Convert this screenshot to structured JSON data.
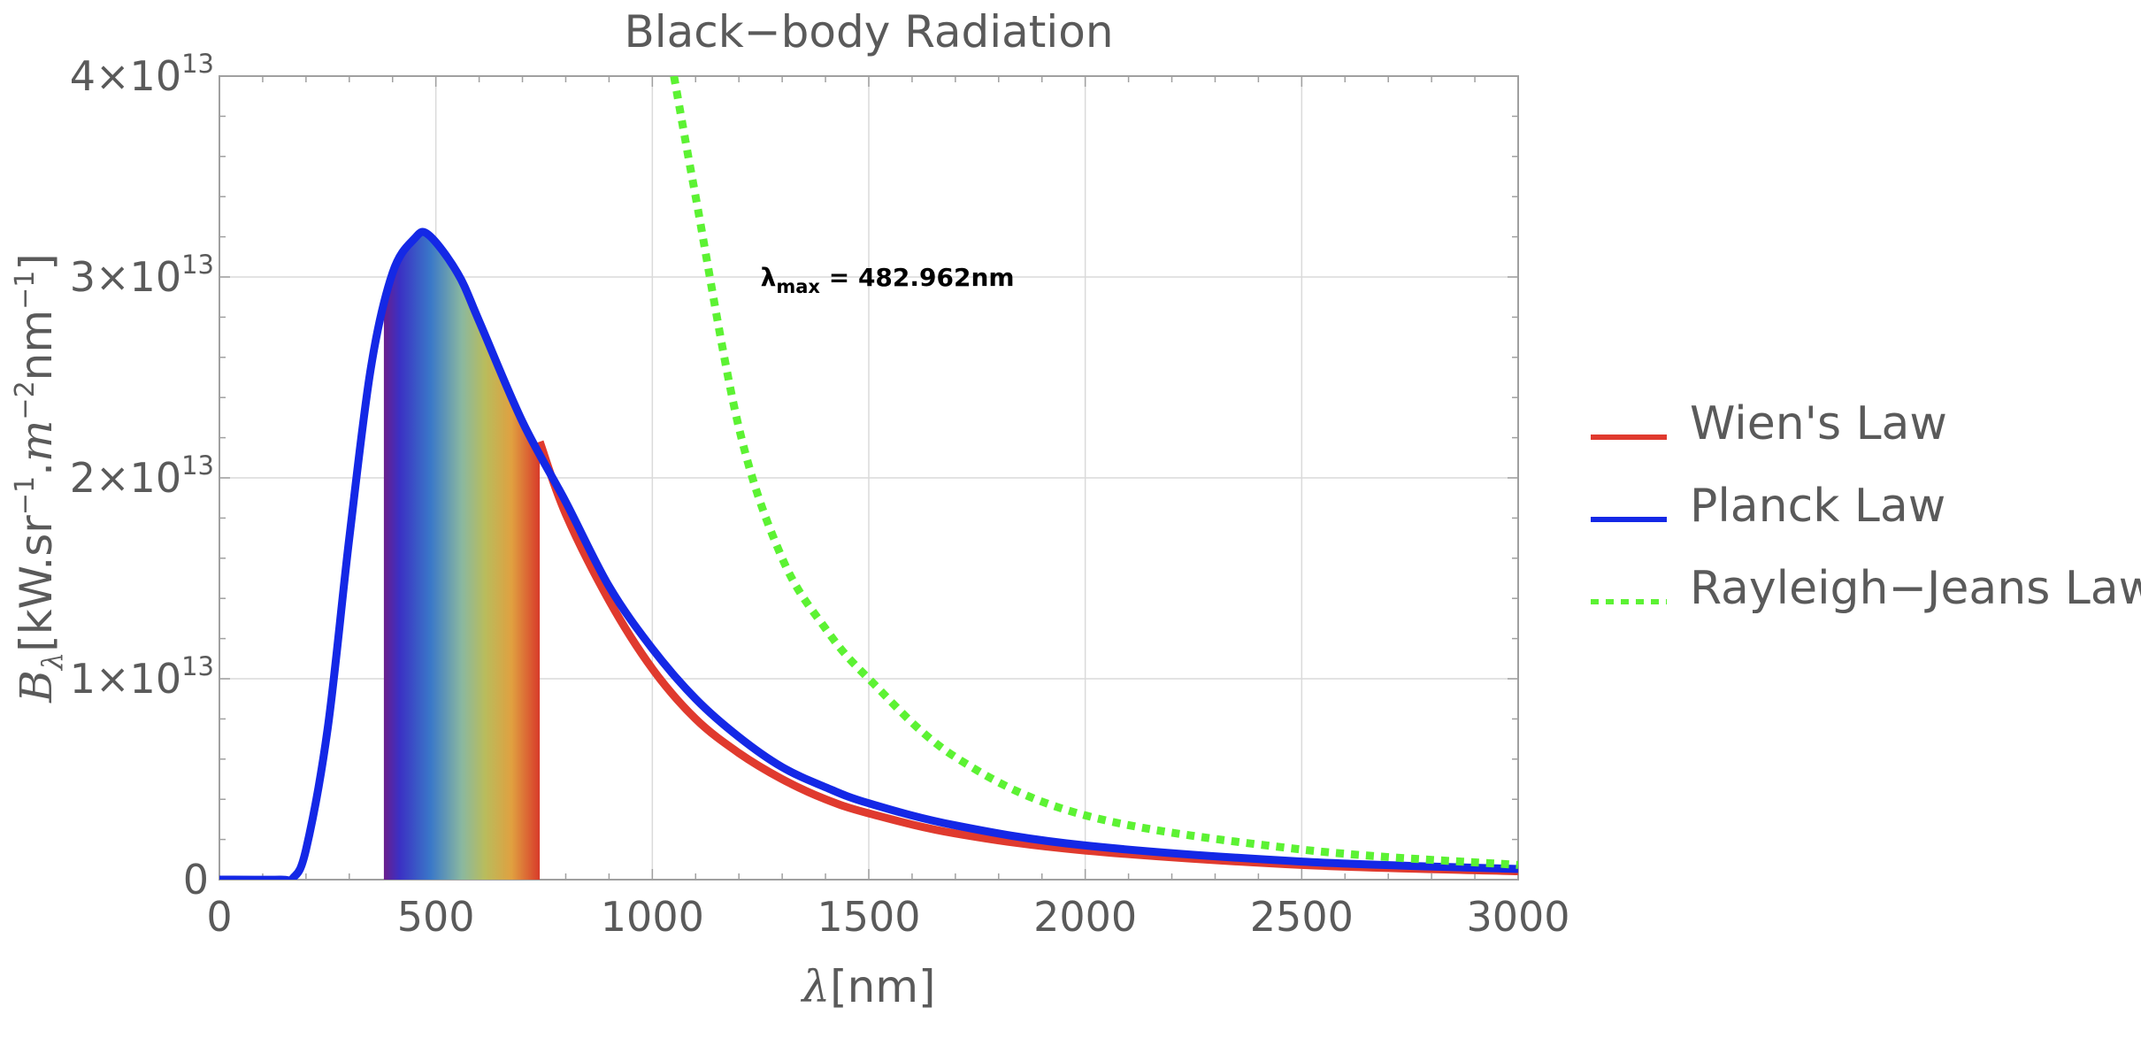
{
  "chart_data": {
    "type": "line",
    "title": "Black−body Radiation",
    "xlabel": {
      "symbol": "λ",
      "unit": "[nm]"
    },
    "ylabel": {
      "symbol": "B",
      "sub": "λ",
      "unit": "[kW.sr",
      "exp1": "−1",
      "mid": ".m",
      "exp2": "−2",
      "unit2": "nm",
      "exp3": "−1",
      "close": "]"
    },
    "xlim": [
      0,
      3000
    ],
    "ylim": [
      0,
      40000000000000.0
    ],
    "x_ticks": [
      0,
      500,
      1000,
      1500,
      2000,
      2500,
      3000
    ],
    "x_tick_labels": [
      "0",
      "500",
      "1000",
      "1500",
      "2000",
      "2500",
      "3000"
    ],
    "y_ticks": [
      0,
      10000000000000.0,
      20000000000000.0,
      30000000000000.0,
      40000000000000.0
    ],
    "y_tick_labels": [
      {
        "base": "0",
        "exp": ""
      },
      {
        "base": "1×10",
        "exp": "13"
      },
      {
        "base": "2×10",
        "exp": "13"
      },
      {
        "base": "3×10",
        "exp": "13"
      },
      {
        "base": "4×10",
        "exp": "13"
      }
    ],
    "grid": true,
    "legend_position": "right",
    "visible_band": {
      "from": 380,
      "to": 740
    },
    "annotation": {
      "symbol": "λ",
      "sub": "max",
      "text": " = 482.962nm",
      "x": 1250,
      "y": 30000000000000.0
    },
    "series": [
      {
        "name": "Wien's Law",
        "color": "#e03a2e",
        "style": "solid",
        "points": [
          [
            740,
            21800000000000.0
          ],
          [
            800,
            18200000000000.0
          ],
          [
            900,
            13900000000000.0
          ],
          [
            1000,
            10500000000000.0
          ],
          [
            1100,
            8000000000000.0
          ],
          [
            1200,
            6300000000000.0
          ],
          [
            1300,
            5000000000000.0
          ],
          [
            1400,
            4000000000000.0
          ],
          [
            1500,
            3300000000000.0
          ],
          [
            1700,
            2300000000000.0
          ],
          [
            2000,
            1450000000000.0
          ],
          [
            2500,
            730000000000.0
          ],
          [
            3000,
            420000000000.0
          ]
        ]
      },
      {
        "name": "Planck Law",
        "color": "#1428e6",
        "style": "solid",
        "points": [
          [
            0,
            0
          ],
          [
            140,
            1000000000.0
          ],
          [
            170,
            80000000000.0
          ],
          [
            200,
            1500000000000.0
          ],
          [
            250,
            7500000000000.0
          ],
          [
            300,
            17000000000000.0
          ],
          [
            350,
            25500000000000.0
          ],
          [
            400,
            30200000000000.0
          ],
          [
            450,
            31900000000000.0
          ],
          [
            483,
            32100000000000.0
          ],
          [
            550,
            30200000000000.0
          ],
          [
            600,
            27800000000000.0
          ],
          [
            700,
            22800000000000.0
          ],
          [
            800,
            18800000000000.0
          ],
          [
            900,
            14600000000000.0
          ],
          [
            1000,
            11500000000000.0
          ],
          [
            1100,
            9000000000000.0
          ],
          [
            1200,
            7100000000000.0
          ],
          [
            1300,
            5600000000000.0
          ],
          [
            1400,
            4600000000000.0
          ],
          [
            1500,
            3800000000000.0
          ],
          [
            1700,
            2700000000000.0
          ],
          [
            2000,
            1700000000000.0
          ],
          [
            2500,
            900000000000.0
          ],
          [
            3000,
            530000000000.0
          ]
        ]
      },
      {
        "name": "Rayleigh−Jeans Law",
        "color": "#5cf233",
        "style": "dotted",
        "points": [
          [
            1050,
            40000000000000.0
          ],
          [
            1100,
            34000000000000.0
          ],
          [
            1200,
            22500000000000.0
          ],
          [
            1300,
            16000000000000.0
          ],
          [
            1400,
            12500000000000.0
          ],
          [
            1500,
            10000000000000.0
          ],
          [
            1700,
            6100000000000.0
          ],
          [
            2000,
            3200000000000.0
          ],
          [
            2500,
            1500000000000.0
          ],
          [
            3000,
            730000000000.0
          ]
        ]
      }
    ]
  }
}
